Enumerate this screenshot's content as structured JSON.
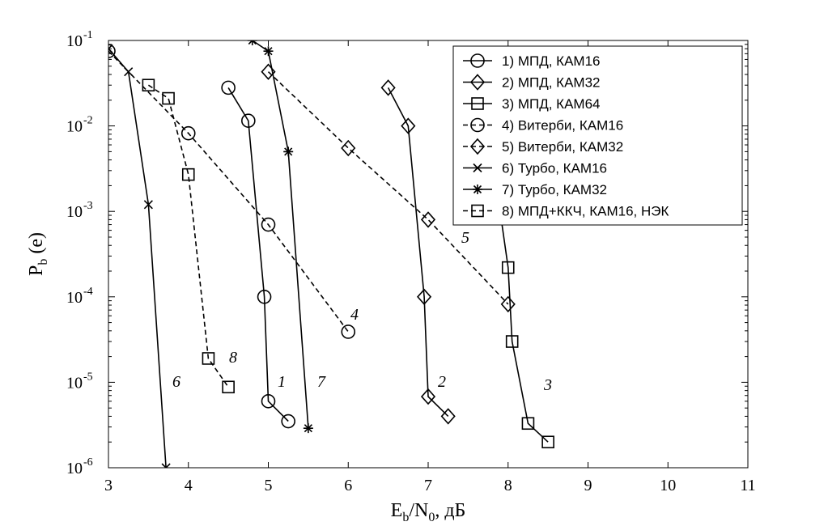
{
  "chart_data": {
    "type": "line",
    "title": "",
    "xlabel": "E_b/N_0, дБ",
    "ylabel": "P_b (e)",
    "xlim": [
      3,
      11
    ],
    "ylim": [
      1e-06,
      0.1
    ],
    "yscale": "log",
    "grid": false,
    "legend_position": "top-right",
    "x_ticks": [
      3,
      4,
      5,
      6,
      7,
      8,
      9,
      10,
      11
    ],
    "y_ticks": [
      {
        "base": "10",
        "exp": "-1",
        "value": 0.1
      },
      {
        "base": "10",
        "exp": "-2",
        "value": 0.01
      },
      {
        "base": "10",
        "exp": "-3",
        "value": 0.001
      },
      {
        "base": "10",
        "exp": "-4",
        "value": 0.0001
      },
      {
        "base": "10",
        "exp": "-5",
        "value": 1e-05
      },
      {
        "base": "10",
        "exp": "-6",
        "value": 1e-06
      }
    ],
    "series": [
      {
        "name": "1) МПД, КАМ16",
        "label": "1",
        "marker": "circle",
        "dash": "solid",
        "x": [
          4.5,
          4.75,
          4.95,
          5.0,
          5.25
        ],
        "y": [
          0.028,
          0.0115,
          0.0001,
          6e-06,
          3.5e-06
        ]
      },
      {
        "name": "2) МПД, КАМ32",
        "label": "2",
        "marker": "diamond",
        "dash": "solid",
        "x": [
          6.5,
          6.75,
          6.95,
          7.0,
          7.25
        ],
        "y": [
          0.028,
          0.01,
          0.0001,
          6.8e-06,
          4e-06
        ]
      },
      {
        "name": "3) МПД, КАМ64",
        "label": "3",
        "marker": "square",
        "dash": "solid",
        "x": [
          7.9,
          8.0,
          8.05,
          8.25,
          8.5
        ],
        "y": [
          0.001,
          0.00022,
          3e-05,
          3.3e-06,
          2e-06
        ]
      },
      {
        "name": "4) Витерби, КАМ16",
        "label": "4",
        "marker": "circle",
        "dash": "dashed",
        "x": [
          3.0,
          4.0,
          5.0,
          6.0
        ],
        "y": [
          0.075,
          0.0082,
          0.0007,
          3.9e-05
        ]
      },
      {
        "name": "5) Витерби, КАМ32",
        "label": "5",
        "marker": "diamond",
        "dash": "dashed",
        "x": [
          5.0,
          6.0,
          7.0,
          8.0
        ],
        "y": [
          0.043,
          0.0055,
          0.0008,
          8.2e-05
        ]
      },
      {
        "name": "6) Турбо, КАМ16",
        "label": "6",
        "marker": "x",
        "dash": "solid",
        "x": [
          3.0,
          3.25,
          3.5,
          3.72
        ],
        "y": [
          0.08,
          0.043,
          0.0012,
          1e-06
        ]
      },
      {
        "name": "7) Турбо, КАМ32",
        "label": "7",
        "marker": "star",
        "dash": "solid",
        "x": [
          4.8,
          5.0,
          5.25,
          5.5
        ],
        "y": [
          0.1,
          0.075,
          0.005,
          2.9e-06
        ]
      },
      {
        "name": "8) МПД+ККЧ, КАМ16, НЭК",
        "label": "8",
        "marker": "square",
        "dash": "dashed",
        "x": [
          3.5,
          3.75,
          4.0,
          4.25,
          4.5
        ],
        "y": [
          0.03,
          0.021,
          0.0027,
          1.9e-05,
          8.8e-06
        ]
      }
    ]
  }
}
